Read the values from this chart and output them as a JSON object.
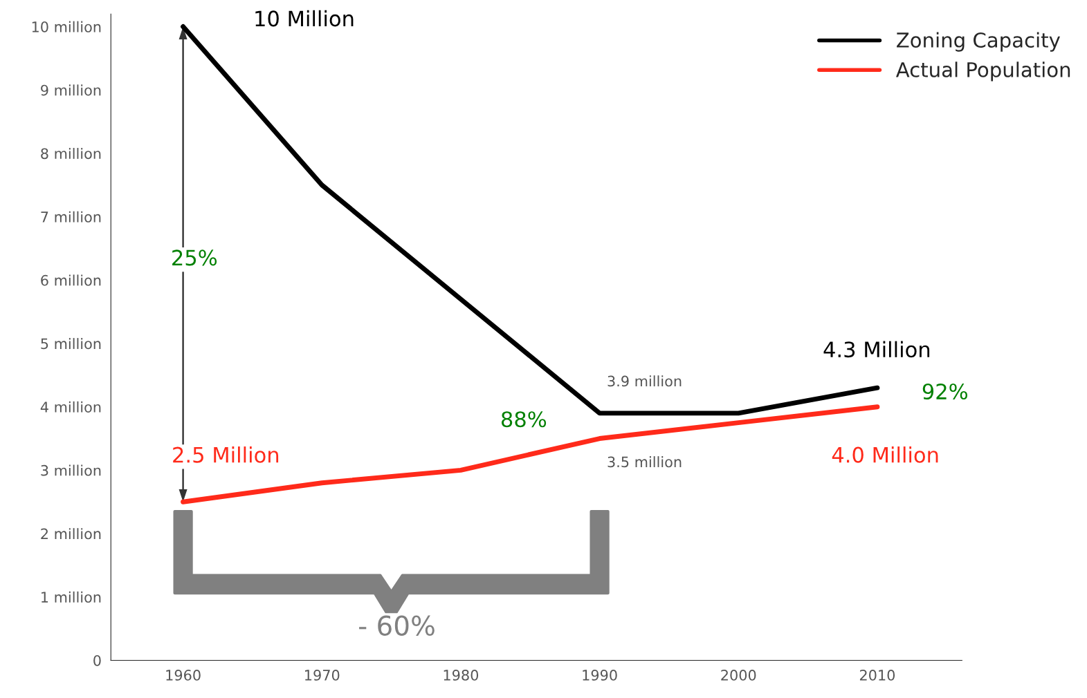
{
  "chart_data": {
    "type": "line",
    "x": [
      1960,
      1970,
      1980,
      1990,
      2000,
      2010
    ],
    "series": [
      {
        "name": "Zoning Capacity",
        "color": "#000000",
        "values": [
          10.0,
          7.5,
          5.7,
          3.9,
          3.9,
          4.3
        ]
      },
      {
        "name": "Actual Population",
        "color": "#ff2a1a",
        "values": [
          2.5,
          2.8,
          3.0,
          3.5,
          3.75,
          4.0
        ]
      }
    ],
    "xlim": [
      1954.8,
      2016.1
    ],
    "ylim": [
      0,
      10.2
    ],
    "xticks": [
      1960,
      1970,
      1980,
      1990,
      2000,
      2010
    ],
    "yticks": [
      0,
      {
        "value": 1,
        "label": "1 million"
      },
      {
        "value": 2,
        "label": "2 million"
      },
      {
        "value": 3,
        "label": "3 million"
      },
      {
        "value": 4,
        "label": "4 million"
      },
      {
        "value": 5,
        "label": "5 million"
      },
      {
        "value": 6,
        "label": "6 million"
      },
      {
        "value": 7,
        "label": "7 million"
      },
      {
        "value": 8,
        "label": "8 million"
      },
      {
        "value": 9,
        "label": "9 million"
      },
      {
        "value": 10,
        "label": "10 million"
      }
    ],
    "annotations": [
      "10 Million",
      "25%",
      "2.5 Million",
      "88%",
      "3.9 million",
      "3.5 million",
      "4.3 Million",
      "92%",
      "4.0 Million",
      "- 60%"
    ],
    "legend": "top right",
    "grid": false,
    "marker": "none",
    "line_style": "solid"
  }
}
